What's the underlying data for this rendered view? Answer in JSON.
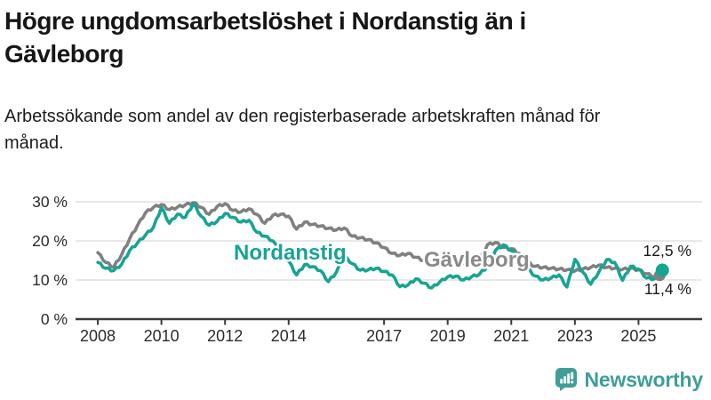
{
  "header": {
    "title": "Högre ungdomsarbetslöshet i Nordanstig än i Gävleborg",
    "subtitle": "Arbetssökande som andel av den registerbaserade arbetskraften månad för månad."
  },
  "chart_data": {
    "type": "line",
    "x_unit": "decimal-year (monthly share of registered labour force, %)",
    "grid": "horizontal",
    "legend_position": "inline-labels",
    "xlim": [
      2007.3,
      2027.0
    ],
    "ylim": [
      0,
      30
    ],
    "x_ticks": [
      2008,
      2010,
      2012,
      2014,
      2017,
      2019,
      2021,
      2023,
      2025
    ],
    "x_tick_labels": [
      "2008",
      "2010",
      "2012",
      "2014",
      "2017",
      "2019",
      "2021",
      "2023",
      "2025"
    ],
    "y_ticks": [
      0,
      10,
      20,
      30
    ],
    "y_tick_labels": [
      "0 %",
      "10 %",
      "20 %",
      "30 %"
    ],
    "x": [
      2008,
      2008.25,
      2008.5,
      2008.75,
      2009,
      2009.25,
      2009.5,
      2009.75,
      2010,
      2010.25,
      2010.5,
      2010.75,
      2011,
      2011.25,
      2011.5,
      2011.75,
      2012,
      2012.25,
      2012.5,
      2012.75,
      2013,
      2013.25,
      2013.5,
      2013.75,
      2014,
      2014.25,
      2014.5,
      2014.75,
      2015,
      2015.25,
      2015.5,
      2015.75,
      2016,
      2016.25,
      2016.5,
      2016.75,
      2017,
      2017.25,
      2017.5,
      2017.75,
      2018,
      2018.25,
      2018.5,
      2018.75,
      2019,
      2019.25,
      2019.5,
      2019.75,
      2020,
      2020.25,
      2020.5,
      2020.75,
      2021,
      2021.25,
      2021.5,
      2021.75,
      2022,
      2022.25,
      2022.5,
      2022.75,
      2023,
      2023.25,
      2023.5,
      2023.75,
      2024,
      2024.25,
      2024.5,
      2024.75,
      2025,
      2025.25,
      2025.5,
      2025.75
    ],
    "series": [
      {
        "name": "Gävleborg",
        "color": "#808080",
        "label_color": "#8a8a8a",
        "end_label": "11,4 %",
        "end_value": 11.4,
        "values": [
          17.0,
          14.5,
          13.3,
          16.5,
          20.5,
          24.0,
          27.2,
          28.6,
          29.3,
          28.0,
          28.6,
          29.2,
          29.8,
          28.6,
          26.8,
          28.8,
          29.5,
          27.8,
          27.4,
          28.2,
          26.8,
          24.5,
          26.5,
          26.8,
          26.3,
          23.0,
          24.8,
          24.2,
          23.8,
          23.2,
          22.8,
          23.3,
          21.2,
          20.8,
          20.3,
          19.5,
          18.3,
          16.8,
          16.3,
          16.8,
          15.8,
          15.0,
          14.7,
          15.1,
          15.0,
          14.7,
          14.3,
          14.6,
          15.0,
          19.0,
          19.6,
          18.3,
          18.0,
          16.8,
          14.5,
          13.5,
          13.2,
          13.0,
          12.8,
          12.6,
          12.3,
          12.8,
          13.2,
          13.8,
          13.2,
          13.0,
          12.7,
          13.0,
          12.6,
          11.6,
          10.9,
          11.4
        ]
      },
      {
        "name": "Nordanstig",
        "color": "#17a493",
        "label_color": "#17a493",
        "end_label": "12,5 %",
        "end_value": 12.5,
        "values": [
          14.5,
          13.0,
          12.4,
          14.0,
          17.5,
          19.5,
          21.5,
          23.5,
          28.5,
          24.5,
          26.8,
          26.0,
          29.5,
          26.3,
          24.0,
          25.0,
          27.0,
          26.0,
          24.8,
          25.3,
          22.2,
          21.2,
          20.0,
          17.0,
          14.8,
          11.3,
          13.9,
          13.4,
          12.4,
          9.6,
          12.0,
          16.0,
          14.2,
          12.5,
          12.6,
          13.0,
          12.2,
          11.3,
          8.3,
          8.7,
          10.3,
          9.2,
          8.0,
          9.5,
          10.8,
          11.0,
          10.0,
          10.8,
          11.5,
          13.5,
          17.5,
          19.0,
          17.5,
          16.0,
          13.0,
          11.0,
          10.0,
          10.5,
          11.3,
          8.2,
          15.3,
          12.0,
          8.9,
          12.0,
          15.2,
          14.5,
          9.9,
          13.5,
          12.8,
          10.5,
          10.3,
          12.5
        ]
      }
    ]
  },
  "branding": {
    "logo_text": "Newsworthy",
    "logo_color": "#3f9e97",
    "logo_icon": "bar-chart-speech-bubble-icon"
  },
  "colors": {
    "nordanstig": "#17a493",
    "gavleborg": "#808080",
    "grid": "#dcdcdc",
    "axis": "#3a3a3a",
    "text": "#1a1a1a"
  }
}
